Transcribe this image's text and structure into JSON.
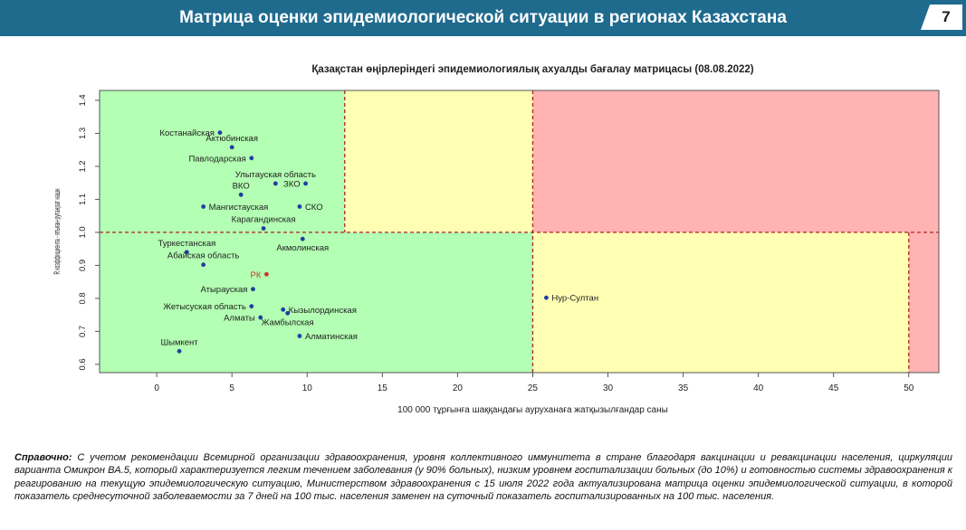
{
  "header": {
    "title": "Матрица оценки эпидемиологической ситуации в регионах Казахстана",
    "page_number": "7"
  },
  "chart_data": {
    "type": "scatter",
    "title": "Қазақстан өңірлеріндегі эпидемиологиялық ахуалды бағалау матрицасы  (08.08.2022)",
    "xlabel": "100 000 тұрғынға шаққандағы ауруханаға жатқызылғандар саны",
    "ylabel": "R коэффициента - ятыған-рутанрат нашн",
    "xlim": [
      -3.8,
      52
    ],
    "ylim": [
      0.575,
      1.43
    ],
    "x_ticks": [
      0,
      5,
      10,
      15,
      20,
      25,
      30,
      35,
      40,
      45,
      50
    ],
    "y_ticks": [
      0.6,
      0.7,
      0.8,
      0.9,
      1.0,
      1.1,
      1.2,
      1.3,
      1.4
    ],
    "y_tick_labels": [
      "0.6",
      "0.7",
      "0.8",
      "0.9",
      "1.0",
      "1.1",
      "1.2",
      "1.3",
      "1.4"
    ],
    "zones": [
      {
        "color": "#b3ffb3",
        "x": [
          -3.8,
          12.5
        ],
        "y": [
          1.0,
          1.43
        ]
      },
      {
        "color": "#ffffb3",
        "x": [
          12.5,
          25
        ],
        "y": [
          1.0,
          1.43
        ]
      },
      {
        "color": "#ffb3b3",
        "x": [
          25,
          52
        ],
        "y": [
          1.0,
          1.43
        ]
      },
      {
        "color": "#b3ffb3",
        "x": [
          -3.8,
          25
        ],
        "y": [
          0.575,
          1.0
        ]
      },
      {
        "color": "#ffffb3",
        "x": [
          25,
          50
        ],
        "y": [
          0.575,
          1.0
        ]
      },
      {
        "color": "#ffb3b3",
        "x": [
          50,
          52
        ],
        "y": [
          0.575,
          1.0
        ]
      }
    ],
    "threshold_lines": [
      {
        "orientation": "vertical",
        "x": 12.5,
        "y": [
          1.0,
          1.43
        ]
      },
      {
        "orientation": "vertical",
        "x": 25,
        "y": [
          0.575,
          1.43
        ]
      },
      {
        "orientation": "vertical",
        "x": 50,
        "y": [
          0.575,
          1.0
        ]
      },
      {
        "orientation": "horizontal",
        "y": 1.0,
        "x": [
          -3.8,
          52
        ]
      }
    ],
    "points": [
      {
        "label": "Костанайская",
        "x": 4.2,
        "y": 1.302,
        "color": "#1f3fa0",
        "label_pos": "left"
      },
      {
        "label": "Актюбинская",
        "x": 5.0,
        "y": 1.258,
        "color": "#1f3fa0",
        "label_pos": "top"
      },
      {
        "label": "Павлодарская",
        "x": 6.3,
        "y": 1.225,
        "color": "#1f3fa0",
        "label_pos": "left"
      },
      {
        "label": "Улытауская область",
        "x": 7.9,
        "y": 1.148,
        "color": "#1f3fa0",
        "label_pos": "top"
      },
      {
        "label": "ЗКО",
        "x": 9.9,
        "y": 1.148,
        "color": "#1f3fa0",
        "label_pos": "left"
      },
      {
        "label": "ВКО",
        "x": 5.6,
        "y": 1.114,
        "color": "#1f3fa0",
        "label_pos": "top"
      },
      {
        "label": "Мангистауская",
        "x": 3.1,
        "y": 1.078,
        "color": "#1f3fa0",
        "label_pos": "right"
      },
      {
        "label": "СКО",
        "x": 9.5,
        "y": 1.078,
        "color": "#1f3fa0",
        "label_pos": "right"
      },
      {
        "label": "Карагандинская",
        "x": 7.1,
        "y": 1.012,
        "color": "#1f3fa0",
        "label_pos": "top"
      },
      {
        "label": "Акмолинская",
        "x": 9.7,
        "y": 0.98,
        "color": "#1f3fa0",
        "label_pos": "bottom"
      },
      {
        "label": "Туркестанская",
        "x": 2.0,
        "y": 0.94,
        "color": "#1f3fa0",
        "label_pos": "top"
      },
      {
        "label": "Абайская область",
        "x": 3.1,
        "y": 0.902,
        "color": "#1f3fa0",
        "label_pos": "top"
      },
      {
        "label": "РК",
        "x": 7.3,
        "y": 0.873,
        "color": "#c0392b",
        "label_pos": "left"
      },
      {
        "label": "Атырауская",
        "x": 6.4,
        "y": 0.828,
        "color": "#1f3fa0",
        "label_pos": "left"
      },
      {
        "label": "Жетысуская область",
        "x": 6.3,
        "y": 0.776,
        "color": "#1f3fa0",
        "label_pos": "left"
      },
      {
        "label": "Кызылординская",
        "x": 8.4,
        "y": 0.766,
        "color": "#1f3fa0",
        "label_pos": "right"
      },
      {
        "label": "Алматы",
        "x": 6.9,
        "y": 0.742,
        "color": "#1f3fa0",
        "label_pos": "left"
      },
      {
        "label": "Жамбылская",
        "x": 8.7,
        "y": 0.755,
        "color": "#1f3fa0",
        "label_pos": "bottom"
      },
      {
        "label": "Алматинская",
        "x": 9.5,
        "y": 0.686,
        "color": "#1f3fa0",
        "label_pos": "right"
      },
      {
        "label": "Шымкент",
        "x": 1.5,
        "y": 0.64,
        "color": "#1f3fa0",
        "label_pos": "top"
      },
      {
        "label": "Нур-Султан",
        "x": 25.9,
        "y": 0.802,
        "color": "#1f3fa0",
        "label_pos": "right"
      }
    ]
  },
  "footnote": {
    "label": "Справочно:",
    "text": " С учетом рекомендации Всемирной организации здравоохранения, уровня коллективного иммунитета в стране благодаря вакцинации и ревакцинации населения, циркуляции варианта Омикрон BA.5, который характеризуется легким течением заболевания (у 90% больных), низким уровнем госпитализации больных (до 10%) и готовностью системы здравоохранения к реагированию на текущую эпидемиологическую ситуацию, Министерством здравоохранения с 15 июля 2022 года актуализирована матрица оценки эпидемиологической ситуации, в которой показатель  среднесуточной заболеваемости за 7 дней на 100 тыс. населения заменен на  суточный показатель госпитализированных на 100 тыс. населения."
  }
}
